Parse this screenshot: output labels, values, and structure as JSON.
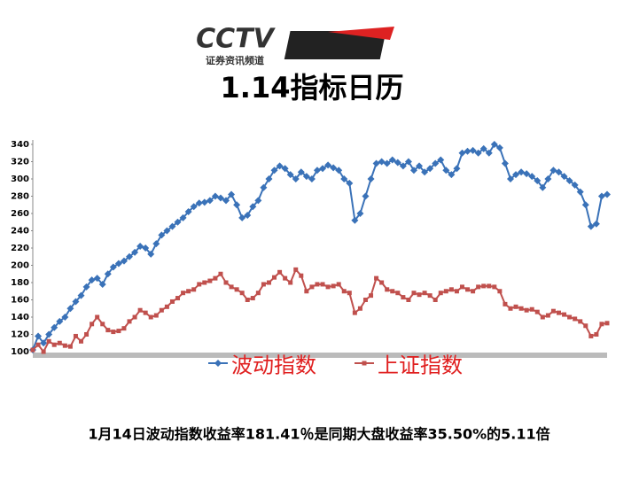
{
  "header": {
    "logo_text": "CCTV",
    "logo_subtitle": "证券资讯频道"
  },
  "chart_data": {
    "type": "line",
    "title": "1.14指标日历",
    "ylim": [
      100,
      340
    ],
    "yticks": [
      100,
      120,
      140,
      160,
      180,
      200,
      220,
      240,
      260,
      280,
      300,
      320,
      340
    ],
    "series": [
      {
        "name": "波动指数",
        "color": "#3a72b8",
        "marker": "diamond",
        "values": [
          102,
          118,
          110,
          120,
          128,
          135,
          140,
          150,
          158,
          165,
          175,
          183,
          185,
          178,
          190,
          198,
          202,
          205,
          210,
          215,
          222,
          220,
          213,
          225,
          235,
          240,
          245,
          250,
          255,
          262,
          268,
          272,
          273,
          275,
          280,
          278,
          275,
          282,
          270,
          255,
          258,
          268,
          275,
          290,
          300,
          310,
          315,
          312,
          305,
          300,
          308,
          303,
          300,
          310,
          312,
          316,
          313,
          310,
          300,
          295,
          252,
          260,
          280,
          300,
          318,
          320,
          318,
          322,
          319,
          315,
          320,
          310,
          315,
          308,
          312,
          318,
          322,
          310,
          305,
          312,
          330,
          332,
          333,
          330,
          335,
          330,
          340,
          336,
          318,
          300,
          305,
          308,
          306,
          303,
          298,
          290,
          300,
          310,
          308,
          303,
          298,
          293,
          285,
          270,
          245,
          248,
          280,
          282
        ]
      },
      {
        "name": "上证指数",
        "color": "#c0504d",
        "marker": "square",
        "values": [
          102,
          108,
          100,
          112,
          108,
          110,
          107,
          106,
          118,
          112,
          120,
          132,
          140,
          132,
          125,
          123,
          124,
          127,
          135,
          140,
          148,
          145,
          140,
          142,
          148,
          152,
          158,
          162,
          168,
          170,
          172,
          178,
          180,
          182,
          185,
          190,
          180,
          175,
          172,
          168,
          160,
          162,
          168,
          178,
          180,
          186,
          192,
          185,
          180,
          195,
          188,
          170,
          175,
          178,
          178,
          175,
          176,
          178,
          170,
          168,
          145,
          150,
          160,
          165,
          185,
          180,
          172,
          170,
          168,
          163,
          160,
          168,
          166,
          168,
          165,
          160,
          168,
          170,
          172,
          170,
          175,
          172,
          170,
          175,
          176,
          176,
          175,
          170,
          155,
          150,
          152,
          150,
          148,
          149,
          146,
          140,
          142,
          147,
          145,
          143,
          140,
          138,
          135,
          130,
          118,
          120,
          132,
          133
        ]
      }
    ],
    "legend_color": "#e02020",
    "footnote": "1月14日波动指数收益率181.41％是同期大盘收益率35.50%的5.11倍"
  }
}
